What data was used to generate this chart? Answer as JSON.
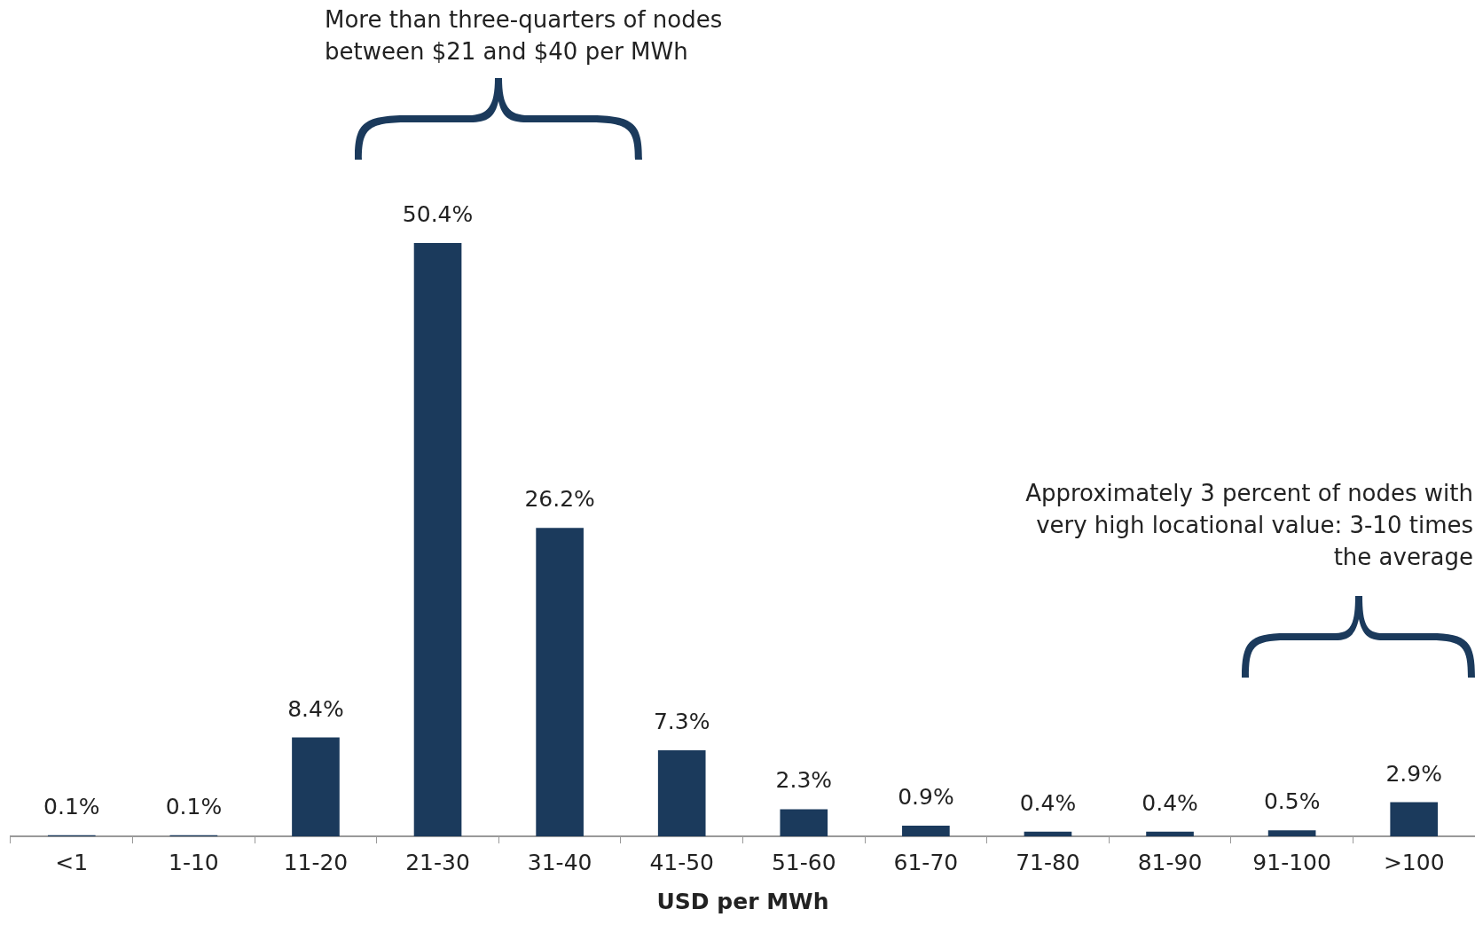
{
  "chart_data": {
    "type": "bar",
    "xlabel": "USD per MWh",
    "categories": [
      "<1",
      "1-10",
      "11-20",
      "21-30",
      "31-40",
      "41-50",
      "51-60",
      "61-70",
      "71-80",
      "81-90",
      "91-100",
      ">100"
    ],
    "values": [
      0.1,
      0.1,
      8.4,
      50.4,
      26.2,
      7.3,
      2.3,
      0.9,
      0.4,
      0.4,
      0.5,
      2.9
    ],
    "value_labels": [
      "0.1%",
      "0.1%",
      "8.4%",
      "50.4%",
      "26.2%",
      "7.3%",
      "2.3%",
      "0.9%",
      "0.4%",
      "0.4%",
      "0.5%",
      "2.9%"
    ],
    "color": "#1b3a5c",
    "grid": false,
    "legend": false,
    "annotations": [
      "More than three-quarters of nodes between $21 and $40 per MWh",
      "Approximately 3 percent of nodes with very high locational value: 3-10 times the average"
    ]
  }
}
